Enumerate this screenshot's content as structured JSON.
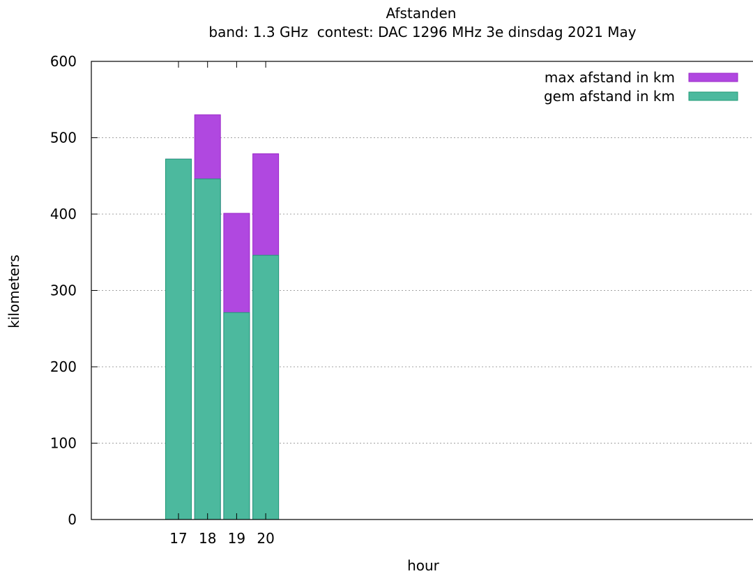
{
  "chart_data": {
    "type": "bar",
    "title": "Afstanden",
    "subtitle": "band: 1.3 GHz  contest: DAC 1296 MHz 3e dinsdag 2021 May",
    "xlabel": "hour",
    "ylabel": "kilometers",
    "ylim": [
      0,
      600
    ],
    "yticks": [
      "0",
      "100",
      "200",
      "300",
      "400",
      "500",
      "600"
    ],
    "categories": [
      "17",
      "18",
      "19",
      "20"
    ],
    "grid": true,
    "legend_position": "top-right",
    "series": [
      {
        "name": "max afstand in km",
        "color": "#b048e0",
        "values": [
          472,
          530,
          401,
          479
        ]
      },
      {
        "name": "gem afstand in km",
        "color": "#4cb99e",
        "values": [
          472,
          446,
          271,
          346
        ]
      }
    ]
  }
}
